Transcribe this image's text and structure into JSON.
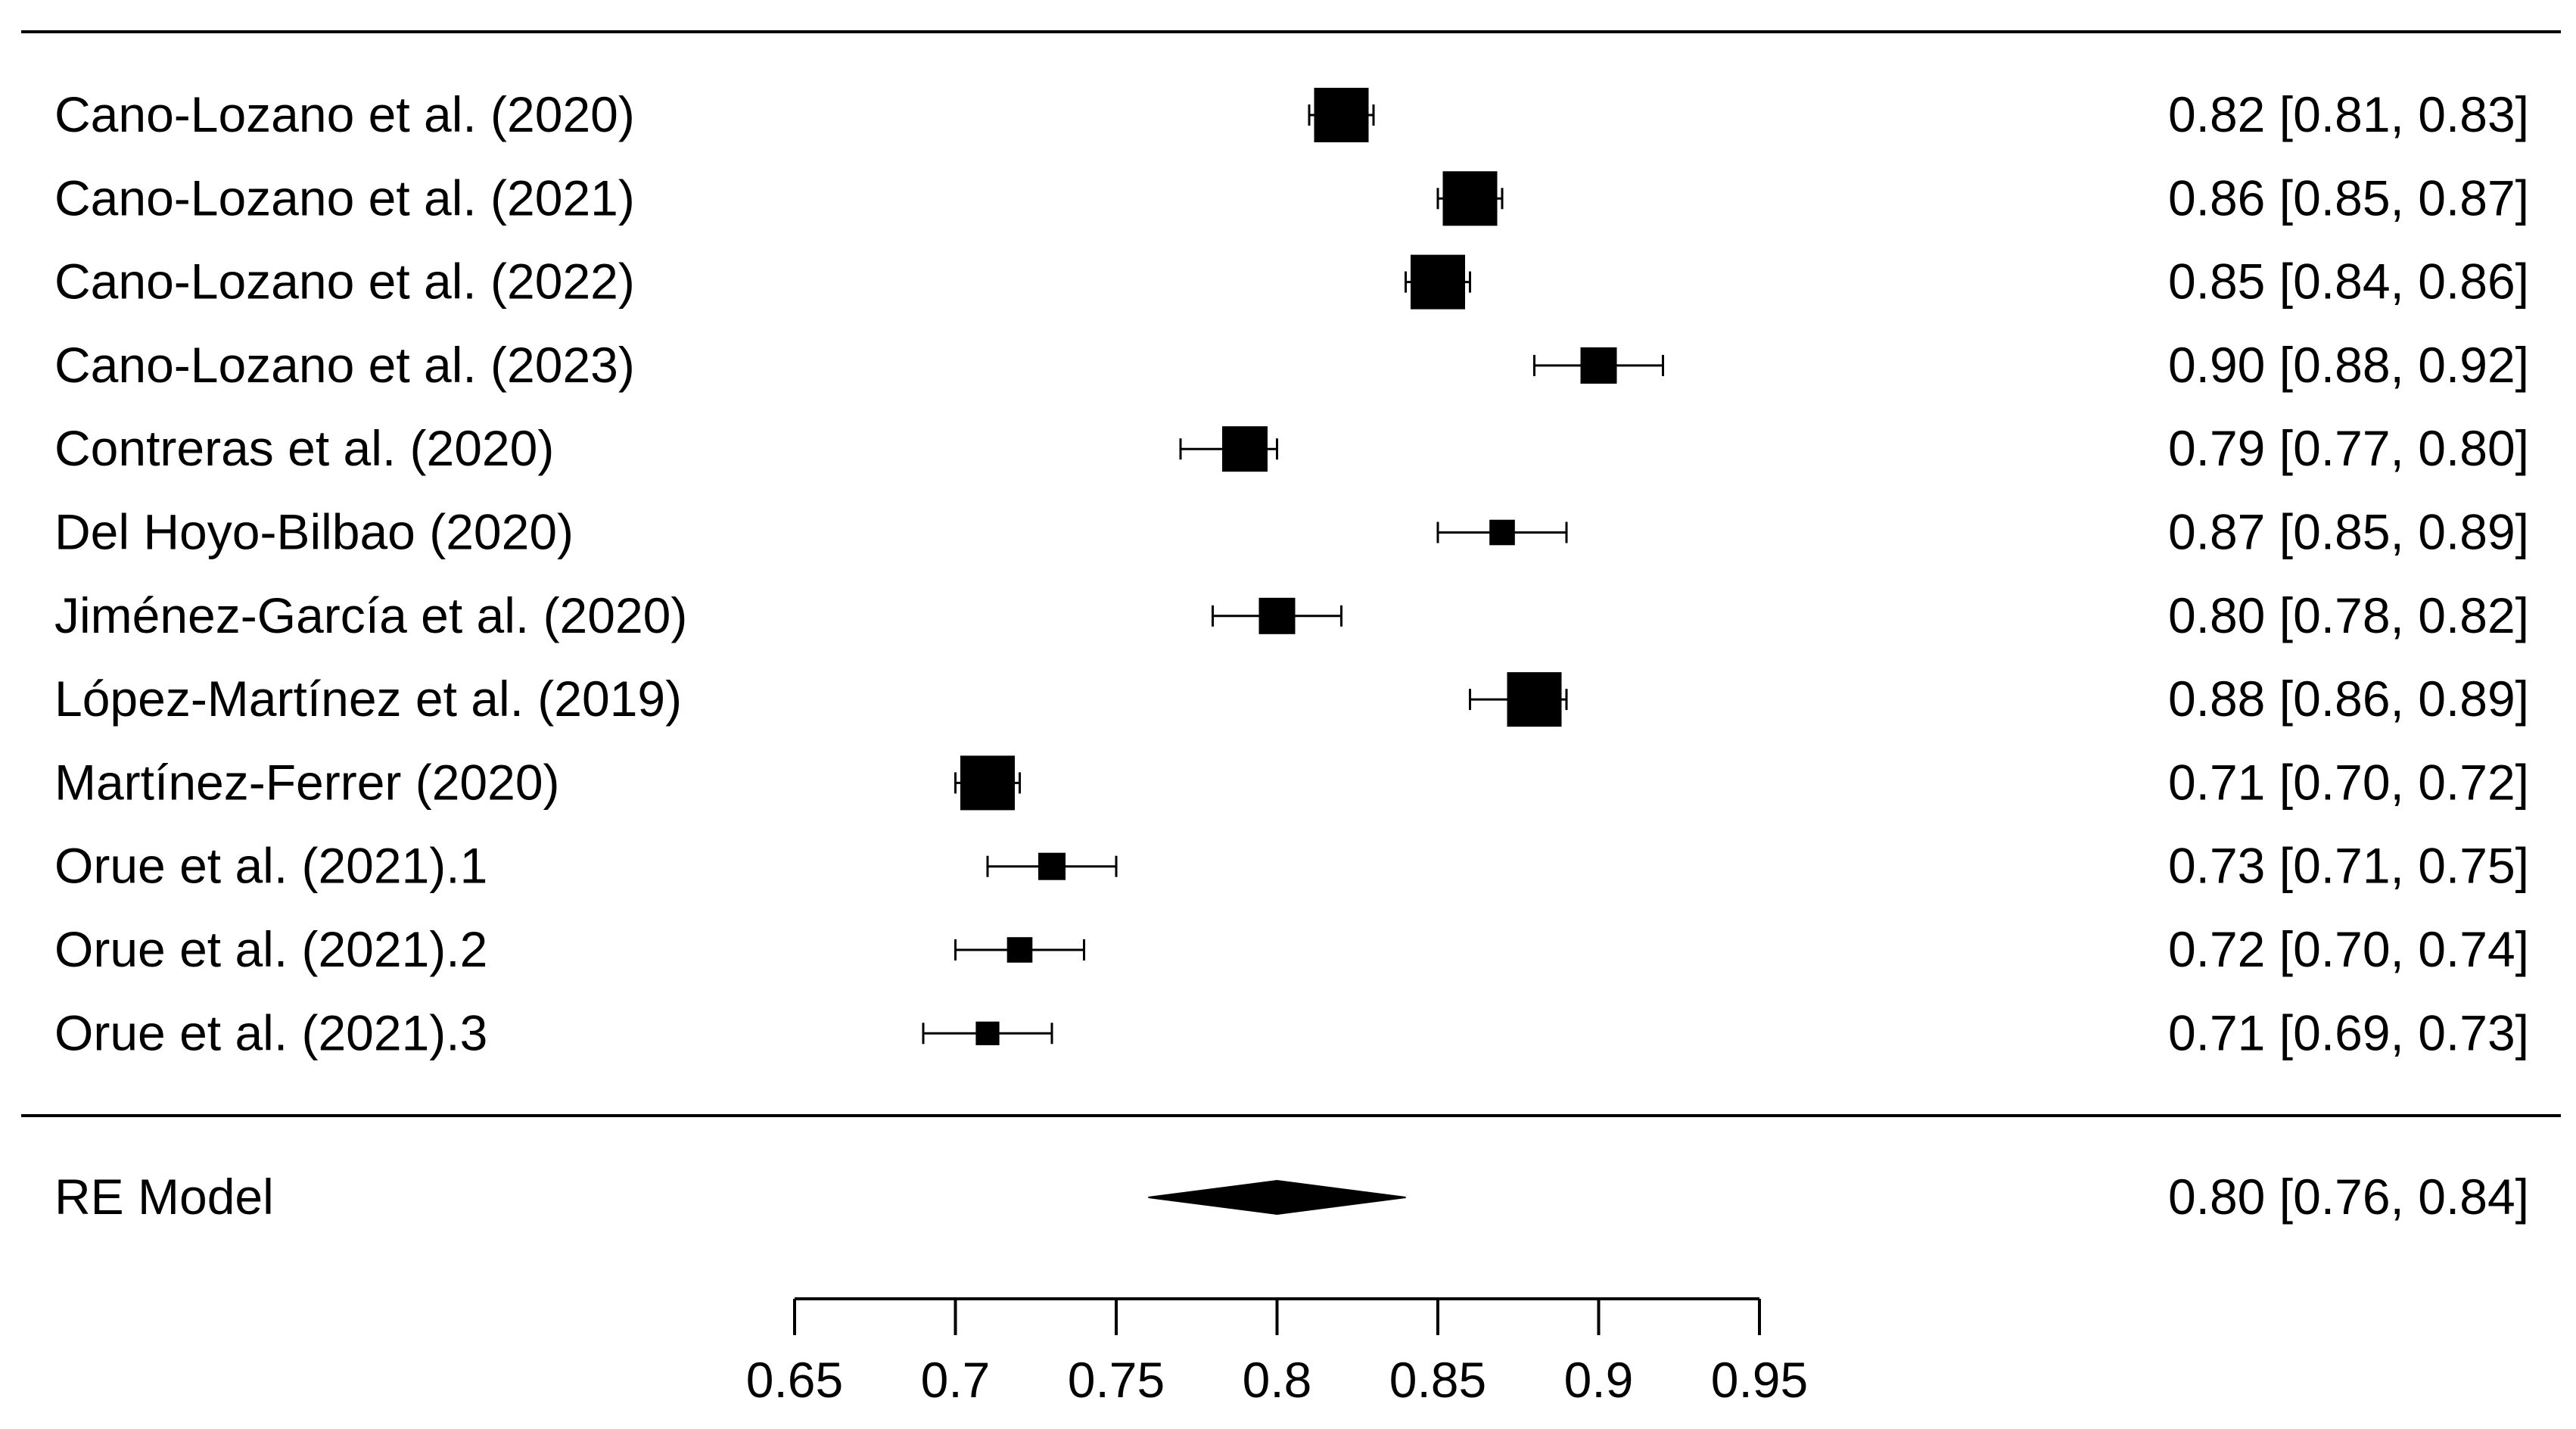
{
  "chart_data": {
    "type": "forest",
    "studies": [
      {
        "label": "Cano-Lozano et al. (2020)",
        "estimate": 0.82,
        "ci": [
          0.81,
          0.83
        ],
        "text": "0.82 [0.81, 0.83]",
        "weight": 3
      },
      {
        "label": "Cano-Lozano et al. (2021)",
        "estimate": 0.86,
        "ci": [
          0.85,
          0.87
        ],
        "text": "0.86 [0.85, 0.87]",
        "weight": 3
      },
      {
        "label": "Cano-Lozano et al. (2022)",
        "estimate": 0.85,
        "ci": [
          0.84,
          0.86
        ],
        "text": "0.85 [0.84, 0.86]",
        "weight": 3
      },
      {
        "label": "Cano-Lozano et al. (2023)",
        "estimate": 0.9,
        "ci": [
          0.88,
          0.92
        ],
        "text": "0.90 [0.88, 0.92]",
        "weight": 2
      },
      {
        "label": "Contreras et al. (2020)",
        "estimate": 0.79,
        "ci": [
          0.77,
          0.8
        ],
        "text": "0.79 [0.77, 0.80]",
        "weight": 2.5
      },
      {
        "label": "Del Hoyo-Bilbao (2020)",
        "estimate": 0.87,
        "ci": [
          0.85,
          0.89
        ],
        "text": "0.87 [0.85, 0.89]",
        "weight": 1.4
      },
      {
        "label": "Jiménez-García et al. (2020)",
        "estimate": 0.8,
        "ci": [
          0.78,
          0.82
        ],
        "text": "0.80 [0.78, 0.82]",
        "weight": 2
      },
      {
        "label": "López-Martínez et al. (2019)",
        "estimate": 0.88,
        "ci": [
          0.86,
          0.89
        ],
        "text": "0.88 [0.86, 0.89]",
        "weight": 3
      },
      {
        "label": "Martínez-Ferrer (2020)",
        "estimate": 0.71,
        "ci": [
          0.7,
          0.72
        ],
        "text": "0.71 [0.70, 0.72]",
        "weight": 3
      },
      {
        "label": "Orue et al. (2021).1",
        "estimate": 0.73,
        "ci": [
          0.71,
          0.75
        ],
        "text": "0.73 [0.71, 0.75]",
        "weight": 1.5
      },
      {
        "label": "Orue et al. (2021).2",
        "estimate": 0.72,
        "ci": [
          0.7,
          0.74
        ],
        "text": "0.72 [0.70, 0.74]",
        "weight": 1.4
      },
      {
        "label": "Orue et al. (2021).3",
        "estimate": 0.71,
        "ci": [
          0.69,
          0.73
        ],
        "text": "0.71 [0.69, 0.73]",
        "weight": 1.3
      }
    ],
    "summary": {
      "label": "RE Model",
      "estimate": 0.8,
      "ci": [
        0.76,
        0.84
      ],
      "text": "0.80 [0.76, 0.84]"
    },
    "xaxis": {
      "range": [
        0.65,
        0.95
      ],
      "ticks": [
        0.65,
        0.7,
        0.75,
        0.8,
        0.85,
        0.9,
        0.95
      ],
      "tick_labels": [
        "0.65",
        "0.7",
        "0.75",
        "0.8",
        "0.85",
        "0.9",
        "0.95"
      ]
    }
  }
}
